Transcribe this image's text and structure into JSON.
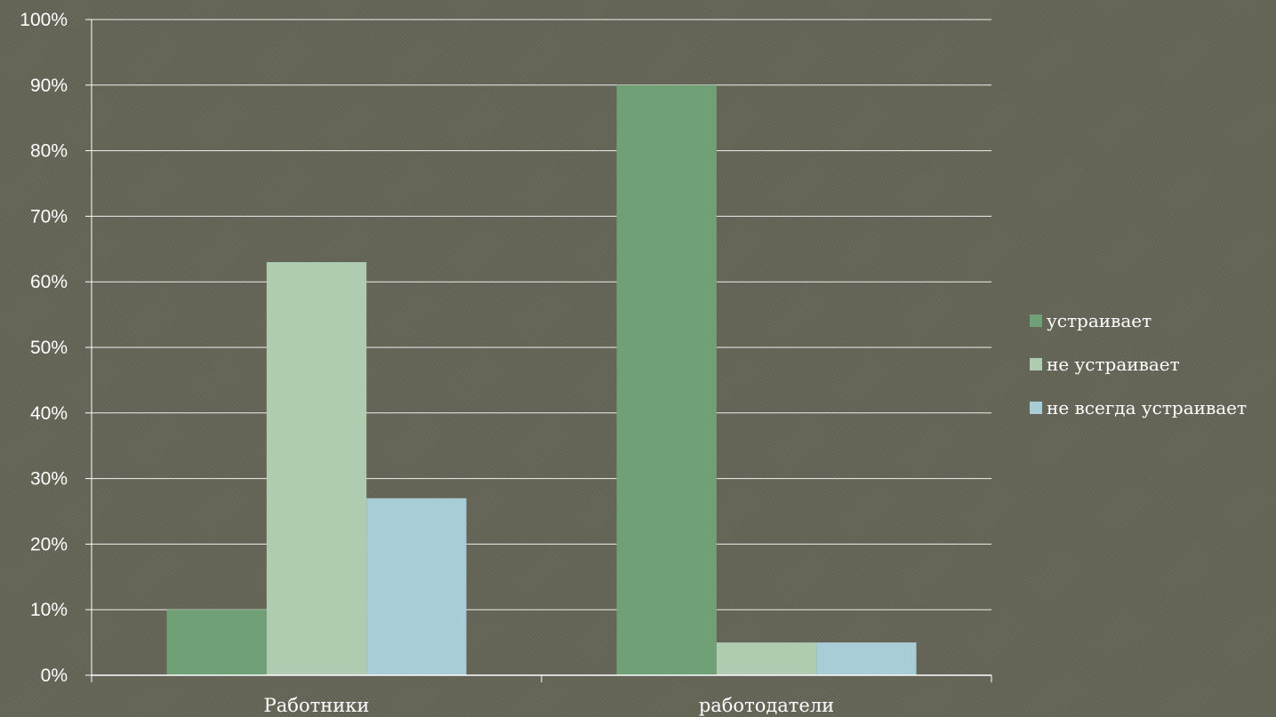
{
  "chart_data": {
    "type": "bar",
    "categories": [
      "Работники",
      "работодатели"
    ],
    "series": [
      {
        "name": "устраивает",
        "values": [
          10,
          90
        ],
        "color": "#6fa076"
      },
      {
        "name": "не устраивает",
        "values": [
          63,
          5
        ],
        "color": "#b0ccb0"
      },
      {
        "name": "не всегда устраивает",
        "values": [
          27,
          5
        ],
        "color": "#a9cdd6"
      }
    ],
    "y_ticks": [
      "0%",
      "10%",
      "20%",
      "30%",
      "40%",
      "50%",
      "60%",
      "70%",
      "80%",
      "90%",
      "100%"
    ],
    "ylim": [
      0,
      100
    ],
    "unit": "%",
    "grid": true,
    "legend_position": "right",
    "colors": {
      "gridline": "#ffffff",
      "text": "#ffffff",
      "background": "#646556"
    }
  }
}
